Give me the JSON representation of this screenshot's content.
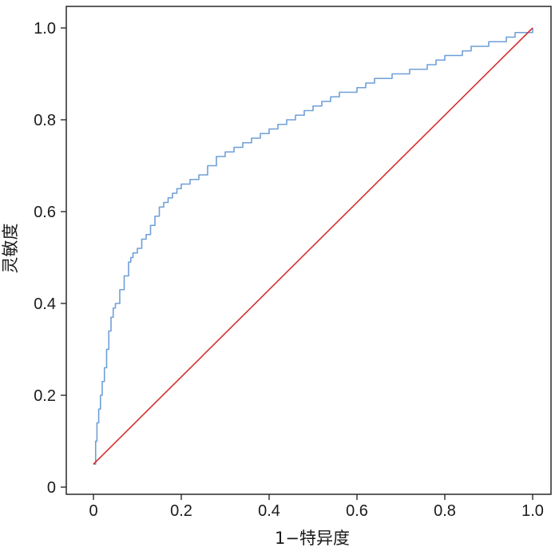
{
  "chart_data": {
    "type": "line",
    "xlabel": "1−特异度",
    "ylabel": "灵敏度",
    "xlim": [
      0,
      1
    ],
    "ylim": [
      0,
      1
    ],
    "x_ticks": [
      "0",
      "0.2",
      "0.4",
      "0.6",
      "0.8",
      "1.0"
    ],
    "y_ticks": [
      "0",
      "0.2",
      "0.4",
      "0.6",
      "0.8",
      "1.0"
    ],
    "grid": false,
    "legend": "none",
    "series": [
      {
        "color": "#6f9fd8",
        "style": "step",
        "x": [
          0,
          0.005,
          0.008,
          0.012,
          0.016,
          0.02,
          0.025,
          0.03,
          0.035,
          0.04,
          0.045,
          0.05,
          0.06,
          0.07,
          0.08,
          0.085,
          0.09,
          0.1,
          0.11,
          0.12,
          0.13,
          0.14,
          0.15,
          0.16,
          0.17,
          0.18,
          0.19,
          0.2,
          0.22,
          0.24,
          0.26,
          0.28,
          0.3,
          0.32,
          0.34,
          0.36,
          0.38,
          0.4,
          0.42,
          0.44,
          0.46,
          0.48,
          0.5,
          0.52,
          0.54,
          0.56,
          0.58,
          0.6,
          0.62,
          0.64,
          0.66,
          0.68,
          0.7,
          0.72,
          0.74,
          0.76,
          0.78,
          0.8,
          0.82,
          0.84,
          0.86,
          0.88,
          0.9,
          0.92,
          0.94,
          0.96,
          0.98,
          1.0
        ],
        "y": [
          0.05,
          0.1,
          0.14,
          0.17,
          0.2,
          0.23,
          0.26,
          0.3,
          0.34,
          0.37,
          0.39,
          0.4,
          0.43,
          0.46,
          0.49,
          0.5,
          0.51,
          0.52,
          0.54,
          0.55,
          0.57,
          0.59,
          0.61,
          0.62,
          0.63,
          0.64,
          0.65,
          0.66,
          0.67,
          0.68,
          0.7,
          0.72,
          0.73,
          0.74,
          0.75,
          0.76,
          0.77,
          0.78,
          0.79,
          0.8,
          0.81,
          0.82,
          0.83,
          0.84,
          0.85,
          0.86,
          0.86,
          0.87,
          0.88,
          0.89,
          0.89,
          0.9,
          0.9,
          0.91,
          0.91,
          0.92,
          0.93,
          0.94,
          0.94,
          0.95,
          0.96,
          0.96,
          0.97,
          0.97,
          0.98,
          0.99,
          0.99,
          1.0
        ]
      },
      {
        "color": "#d62f2f",
        "style": "line",
        "x": [
          0,
          1
        ],
        "y": [
          0.05,
          1.0
        ]
      }
    ]
  }
}
